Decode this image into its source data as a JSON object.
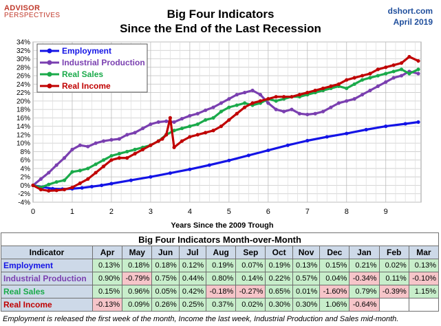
{
  "header": {
    "logo_line1": "ADVISOR",
    "logo_line2": "PERSPECTIVES",
    "title_line1": "Big Four Indicators",
    "title_line2": "Since the End of the Last Recession",
    "source_line1": "dshort.com",
    "source_line2": "April 2019"
  },
  "colors": {
    "employment": "#1414e6",
    "industrial_production": "#7a3fb0",
    "real_sales": "#1aaa4a",
    "real_income": "#c00000",
    "positive_cell": "#c8eecb",
    "negative_cell": "#f6c5c9",
    "header_cell": "#cdd9e8"
  },
  "chart_data": {
    "type": "line",
    "xlabel": "Years Since the 2009 Trough",
    "ylabel": "",
    "xlim": [
      0,
      9.9
    ],
    "ylim": [
      -4,
      34
    ],
    "x_ticks": [
      0,
      1,
      2,
      3,
      4,
      5,
      6,
      7,
      8,
      9
    ],
    "y_ticks": [
      -4,
      -2,
      0,
      2,
      4,
      6,
      8,
      10,
      12,
      14,
      16,
      18,
      20,
      22,
      24,
      26,
      28,
      30,
      32,
      34
    ],
    "y_tick_labels": [
      "-4%",
      "-2%",
      "0%",
      "2%",
      "4%",
      "6%",
      "8%",
      "10%",
      "12%",
      "14%",
      "16%",
      "18%",
      "20%",
      "22%",
      "24%",
      "26%",
      "28%",
      "30%",
      "32%",
      "34%"
    ],
    "grid": true,
    "legend_position": "top-left",
    "series": [
      {
        "name": "Employment",
        "key": "employment",
        "x": [
          0,
          0.25,
          0.5,
          0.75,
          1,
          1.25,
          1.5,
          1.75,
          2,
          2.5,
          3,
          3.5,
          4,
          4.5,
          5,
          5.5,
          6,
          6.5,
          7,
          7.5,
          8,
          8.5,
          9,
          9.5,
          9.83
        ],
        "y": [
          0,
          -0.4,
          -0.8,
          -0.9,
          -0.8,
          -0.6,
          -0.3,
          0.0,
          0.4,
          1.2,
          2.0,
          2.9,
          3.8,
          4.8,
          5.9,
          7.1,
          8.3,
          9.5,
          10.6,
          11.5,
          12.3,
          13.2,
          14.0,
          14.6,
          15.0
        ]
      },
      {
        "name": "Industrial Production",
        "key": "industrial_production",
        "x": [
          0,
          0.2,
          0.4,
          0.6,
          0.8,
          1.0,
          1.2,
          1.4,
          1.6,
          1.8,
          2.0,
          2.2,
          2.4,
          2.6,
          2.8,
          3.0,
          3.2,
          3.4,
          3.6,
          3.8,
          4.0,
          4.2,
          4.4,
          4.6,
          4.8,
          5.0,
          5.2,
          5.4,
          5.6,
          5.8,
          6.0,
          6.2,
          6.4,
          6.6,
          6.8,
          7.0,
          7.2,
          7.4,
          7.6,
          7.8,
          8.0,
          8.2,
          8.4,
          8.6,
          8.8,
          9.0,
          9.2,
          9.4,
          9.6,
          9.83
        ],
        "y": [
          0,
          1.5,
          3.0,
          4.8,
          6.5,
          8.5,
          9.5,
          9.2,
          10.0,
          10.5,
          10.8,
          11.0,
          12.0,
          12.5,
          13.5,
          14.5,
          15.0,
          15.2,
          15.0,
          15.8,
          16.5,
          17.0,
          17.8,
          18.5,
          19.5,
          20.5,
          21.5,
          22.0,
          22.5,
          21.5,
          19.5,
          18.0,
          17.5,
          18.0,
          17.0,
          16.8,
          17.0,
          17.5,
          18.5,
          19.5,
          20.0,
          20.5,
          21.5,
          22.5,
          23.5,
          24.5,
          25.5,
          26.0,
          27.0,
          26.5
        ]
      },
      {
        "name": "Real Sales",
        "key": "real_sales",
        "x": [
          0,
          0.2,
          0.4,
          0.6,
          0.8,
          1.0,
          1.2,
          1.4,
          1.6,
          1.8,
          2.0,
          2.2,
          2.4,
          2.6,
          2.8,
          3.0,
          3.2,
          3.4,
          3.6,
          3.8,
          4.0,
          4.2,
          4.4,
          4.6,
          4.8,
          5.0,
          5.2,
          5.4,
          5.6,
          5.8,
          6.0,
          6.2,
          6.4,
          6.6,
          6.8,
          7.0,
          7.2,
          7.4,
          7.6,
          7.8,
          8.0,
          8.2,
          8.4,
          8.6,
          8.8,
          9.0,
          9.2,
          9.4,
          9.6,
          9.83
        ],
        "y": [
          0,
          -0.5,
          0.2,
          0.8,
          1.2,
          3.2,
          3.5,
          4.0,
          5.0,
          6.0,
          7.0,
          7.5,
          8.0,
          8.5,
          9.0,
          9.5,
          10.5,
          12.0,
          13.0,
          13.5,
          14.0,
          14.5,
          15.5,
          16.0,
          17.5,
          18.5,
          19.0,
          19.5,
          19.0,
          19.5,
          20.5,
          20.0,
          20.5,
          21.0,
          21.0,
          21.5,
          22.0,
          22.5,
          23.0,
          23.5,
          23.0,
          24.0,
          25.0,
          25.5,
          26.0,
          26.5,
          27.0,
          27.5,
          26.5,
          27.5
        ]
      },
      {
        "name": "Real Income",
        "key": "real_income",
        "x": [
          0,
          0.2,
          0.4,
          0.6,
          0.8,
          1.0,
          1.2,
          1.4,
          1.6,
          1.8,
          2.0,
          2.2,
          2.4,
          2.6,
          2.8,
          3.0,
          3.2,
          3.3,
          3.4,
          3.5,
          3.6,
          3.8,
          4.0,
          4.2,
          4.4,
          4.6,
          4.8,
          5.0,
          5.2,
          5.4,
          5.6,
          5.8,
          6.0,
          6.2,
          6.4,
          6.6,
          6.8,
          7.0,
          7.2,
          7.4,
          7.6,
          7.8,
          8.0,
          8.2,
          8.4,
          8.6,
          8.8,
          9.0,
          9.2,
          9.4,
          9.6,
          9.83
        ],
        "y": [
          0,
          -1.0,
          -1.3,
          -1.2,
          -1.0,
          -0.5,
          0.5,
          1.5,
          3.0,
          4.5,
          6.0,
          6.5,
          6.5,
          7.5,
          8.5,
          9.5,
          10.5,
          11.0,
          12.0,
          16.0,
          9.0,
          10.5,
          11.5,
          12.0,
          12.5,
          13.0,
          14.0,
          15.5,
          17.0,
          18.5,
          19.5,
          20.0,
          20.5,
          21.0,
          21.0,
          21.0,
          21.5,
          22.0,
          22.5,
          23.0,
          23.5,
          24.0,
          25.0,
          25.5,
          26.0,
          26.5,
          27.5,
          28.0,
          28.5,
          29.0,
          30.5,
          29.5
        ]
      }
    ]
  },
  "table": {
    "title": "Big Four Indicators Month-over-Month",
    "header_label": "Indicator",
    "months": [
      "Apr",
      "May",
      "Jun",
      "Jul",
      "Aug",
      "Sep",
      "Oct",
      "Nov",
      "Dec",
      "Jan",
      "Feb",
      "Mar"
    ],
    "rows": [
      {
        "name": "Employment",
        "key": "employment",
        "values": [
          "0.13%",
          "0.18%",
          "0.18%",
          "0.12%",
          "0.19%",
          "0.07%",
          "0.19%",
          "0.13%",
          "0.15%",
          "0.21%",
          "0.02%",
          "0.13%"
        ]
      },
      {
        "name": "Industrial Production",
        "key": "industrial_production",
        "values": [
          "0.90%",
          "-0.79%",
          "0.75%",
          "0.44%",
          "0.80%",
          "0.14%",
          "0.22%",
          "0.57%",
          "0.04%",
          "-0.34%",
          "0.11%",
          "-0.10%"
        ]
      },
      {
        "name": "Real Sales",
        "key": "real_sales",
        "values": [
          "0.15%",
          "0.96%",
          "0.05%",
          "0.42%",
          "-0.18%",
          "-0.27%",
          "0.65%",
          "0.01%",
          "-1.60%",
          "0.79%",
          "-0.39%",
          "1.15%"
        ]
      },
      {
        "name": "Real Income",
        "key": "real_income",
        "values": [
          "-0.13%",
          "0.09%",
          "0.26%",
          "0.25%",
          "0.37%",
          "0.02%",
          "0.30%",
          "0.30%",
          "1.06%",
          "-0.64%",
          "",
          ""
        ]
      }
    ]
  },
  "footnote": "Employment is released the first week of the month, Income the last week, Industrial Production and Sales mid-month."
}
